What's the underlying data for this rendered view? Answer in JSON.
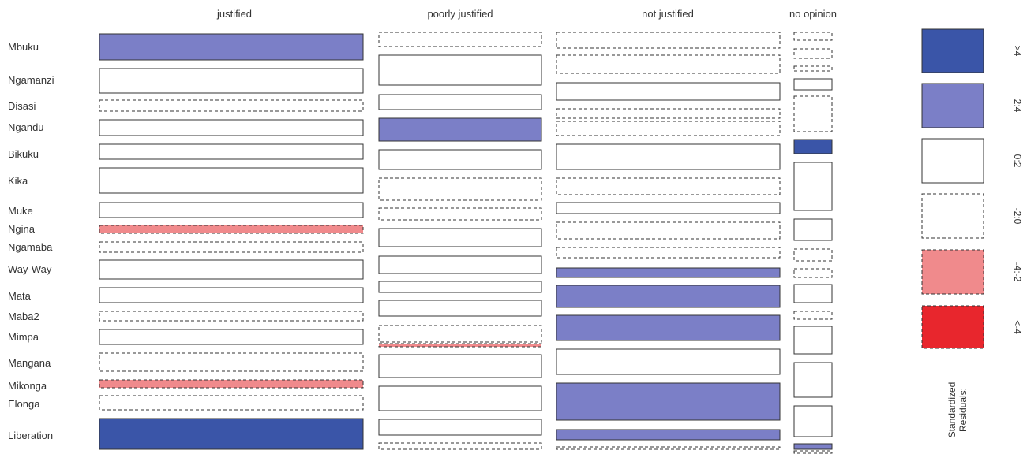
{
  "chart_data": {
    "type": "mosaic",
    "columns": [
      "justified",
      "poorly justified",
      "not justified",
      "no opinion"
    ],
    "rows": [
      "Mbuku",
      "Ngamanzi",
      "Disasi",
      "Ngandu",
      "Bikuku",
      "Kika",
      "Muke",
      "Ngina",
      "Ngamaba",
      "Way-Way",
      "Mata",
      "Maba2",
      "Mimpa",
      "Mangana",
      "Mikonga",
      "Elonga",
      "Liberation"
    ],
    "residual_levels": [
      ">4",
      "2:4",
      "0:2",
      "-2:0",
      "-4:-2",
      "<-4"
    ],
    "cells": [
      [
        "2:4",
        "-2:0",
        "-2:0",
        "-2:0"
      ],
      [
        "0:2",
        "0:2",
        "-2:0",
        "-2:0"
      ],
      [
        "-2:0",
        "0:2",
        "0:2",
        "-2:0"
      ],
      [
        "0:2",
        "2:4",
        "-2:0",
        "0:2"
      ],
      [
        "0:2",
        "0:2",
        "-2:0",
        "-2:0"
      ],
      [
        "0:2",
        "-2:0",
        "0:2",
        ">4"
      ],
      [
        "0:2",
        "-2:0",
        "-2:0",
        "0:2"
      ],
      [
        "-4:-2",
        "0:2",
        "0:2",
        "0:2"
      ],
      [
        "-2:0",
        "0:2",
        "-2:0",
        "-2:0"
      ],
      [
        "0:2",
        "0:2",
        "-2:0",
        "-2:0"
      ],
      [
        "0:2",
        "0:2",
        "2:4",
        "0:2"
      ],
      [
        "-2:0",
        "-2:0",
        "2:4",
        "-2:0"
      ],
      [
        "0:2",
        "-4:-2",
        "2:4",
        "0:2"
      ],
      [
        "-2:0",
        "0:2",
        "0:2",
        "0:2"
      ],
      [
        "-4:-2",
        "0:2",
        "2:4",
        "0:2"
      ],
      [
        "-2:0",
        "0:2",
        "2:4",
        "2:4"
      ],
      [
        ">4",
        "-2:0",
        "-2:0",
        "-2:0"
      ]
    ],
    "legend": {
      "title": "Standardized Residuals:",
      "colors": {
        ">4": "#3a55a8",
        "2:4": "#7b7fc7",
        "0:2": "#ffffff",
        "-2:0": "#ffffff",
        "-4:-2": "#f08a8c",
        "<-4": "#e8262d"
      }
    }
  }
}
